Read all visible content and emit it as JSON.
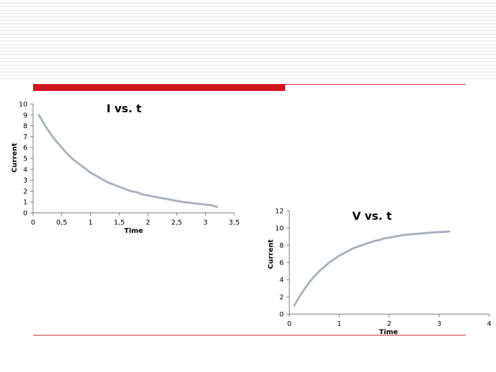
{
  "colors": {
    "accent": "#d0151c",
    "curve": "#a6b2be"
  },
  "chart_data": [
    {
      "type": "line",
      "title": "I vs. t",
      "xlabel": "Time",
      "ylabel": "Current",
      "xlim": [
        0,
        3.5
      ],
      "ylim": [
        0,
        10
      ],
      "xticks": [
        "0",
        "0,5",
        "1",
        "1,5",
        "2",
        "2,5",
        "3",
        "3,5"
      ],
      "yticks": [
        "0",
        "1",
        "2",
        "3",
        "4",
        "5",
        "6",
        "7",
        "8",
        "9",
        "10"
      ],
      "grid": false,
      "series": [
        {
          "x": [
            0.1,
            0.2,
            0.3,
            0.4,
            0.5,
            0.6,
            0.7,
            0.8,
            0.9,
            1.0,
            1.1,
            1.2,
            1.3,
            1.4,
            1.5,
            1.6,
            1.7,
            1.8,
            1.9,
            2.0,
            2.1,
            2.2,
            2.3,
            2.4,
            2.5,
            2.6,
            2.7,
            2.8,
            2.9,
            3.0,
            3.1,
            3.2
          ],
          "y": [
            9.0,
            8.1,
            7.3,
            6.6,
            6.0,
            5.4,
            4.9,
            4.5,
            4.1,
            3.7,
            3.4,
            3.1,
            2.8,
            2.6,
            2.4,
            2.2,
            2.0,
            1.9,
            1.7,
            1.6,
            1.5,
            1.4,
            1.3,
            1.2,
            1.1,
            1.0,
            0.95,
            0.88,
            0.82,
            0.76,
            0.71,
            0.55
          ]
        }
      ]
    },
    {
      "type": "line",
      "title": "V vs. t",
      "xlabel": "Time",
      "ylabel": "Current",
      "xlim": [
        0,
        4
      ],
      "ylim": [
        0,
        12
      ],
      "xticks": [
        "0",
        "1",
        "2",
        "3",
        "4"
      ],
      "yticks": [
        "0",
        "2",
        "4",
        "6",
        "8",
        "10",
        "12"
      ],
      "grid": false,
      "series": [
        {
          "x": [
            0.1,
            0.2,
            0.3,
            0.4,
            0.5,
            0.6,
            0.7,
            0.8,
            0.9,
            1.0,
            1.1,
            1.2,
            1.3,
            1.4,
            1.5,
            1.6,
            1.7,
            1.8,
            1.9,
            2.0,
            2.1,
            2.2,
            2.3,
            2.4,
            2.5,
            2.6,
            2.7,
            2.8,
            2.9,
            3.0,
            3.1,
            3.2
          ],
          "y": [
            1.0,
            2.0,
            2.9,
            3.7,
            4.4,
            5.0,
            5.5,
            6.0,
            6.4,
            6.8,
            7.1,
            7.4,
            7.7,
            7.9,
            8.1,
            8.3,
            8.5,
            8.6,
            8.8,
            8.9,
            9.0,
            9.1,
            9.2,
            9.25,
            9.3,
            9.35,
            9.4,
            9.45,
            9.5,
            9.52,
            9.55,
            9.6
          ]
        }
      ]
    }
  ]
}
